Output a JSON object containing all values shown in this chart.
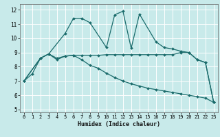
{
  "xlabel": "Humidex (Indice chaleur)",
  "background_color": "#c8eaea",
  "grid_color": "#ffffff",
  "line_color": "#1a6b6b",
  "xlim": [
    -0.5,
    23.5
  ],
  "ylim": [
    4.8,
    12.4
  ],
  "xticks": [
    0,
    1,
    2,
    3,
    4,
    5,
    6,
    7,
    8,
    9,
    10,
    11,
    12,
    13,
    14,
    15,
    16,
    17,
    18,
    19,
    20,
    21,
    22,
    23
  ],
  "yticks": [
    5,
    6,
    7,
    8,
    9,
    10,
    11,
    12
  ],
  "line1_x": [
    0,
    2,
    3,
    4,
    5,
    6,
    7,
    8,
    9,
    10,
    11,
    12,
    13,
    14,
    15,
    16,
    17,
    18,
    19,
    20,
    21,
    22,
    23
  ],
  "line1_y": [
    7.0,
    8.6,
    8.9,
    8.6,
    8.75,
    8.8,
    8.8,
    8.8,
    8.8,
    8.85,
    8.85,
    8.85,
    8.85,
    8.85,
    8.85,
    8.85,
    8.85,
    8.85,
    9.0,
    9.0,
    8.5,
    8.3,
    5.5
  ],
  "line2_x": [
    0,
    2,
    3,
    5,
    6,
    7,
    8,
    10,
    11,
    12,
    13,
    14,
    16,
    17,
    18,
    19,
    20,
    21,
    22,
    23
  ],
  "line2_y": [
    7.0,
    8.6,
    8.9,
    10.35,
    11.4,
    11.4,
    11.1,
    9.35,
    11.65,
    11.9,
    9.3,
    11.7,
    9.75,
    9.35,
    9.25,
    9.1,
    9.0,
    8.5,
    8.3,
    5.5
  ],
  "line3_x": [
    0,
    1,
    2,
    3,
    4,
    5,
    6,
    7,
    8,
    9,
    10,
    11,
    12,
    13,
    14,
    15,
    16,
    17,
    18,
    19,
    20,
    21,
    22,
    23
  ],
  "line3_y": [
    7.0,
    7.5,
    8.6,
    8.9,
    8.5,
    8.75,
    8.8,
    8.5,
    8.1,
    7.9,
    7.55,
    7.25,
    7.0,
    6.8,
    6.65,
    6.5,
    6.4,
    6.3,
    6.2,
    6.1,
    6.0,
    5.9,
    5.8,
    5.5
  ]
}
